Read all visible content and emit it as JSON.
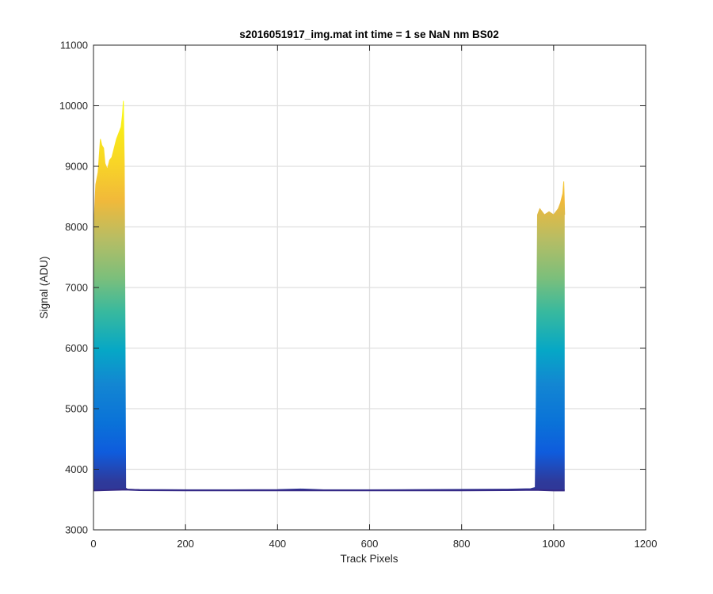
{
  "chart_data": {
    "type": "line",
    "title": "s2016051917_img.mat int time = 1 se  NaN nm BS02",
    "xlabel": "Track Pixels",
    "ylabel": "Signal (ADU)",
    "xlim": [
      0,
      1200
    ],
    "ylim": [
      3000,
      11000
    ],
    "x_ticks": [
      "0",
      "200",
      "400",
      "600",
      "800",
      "1000",
      "1200"
    ],
    "y_ticks": [
      "3000",
      "4000",
      "5000",
      "6000",
      "7000",
      "8000",
      "9000",
      "10000",
      "11000"
    ],
    "grid": true,
    "colormap": "parula",
    "series": [
      {
        "x": [
          0,
          2,
          5,
          10,
          15,
          18,
          22,
          25,
          30,
          35,
          40,
          45,
          50,
          55,
          60,
          63,
          65,
          67,
          70,
          72,
          75,
          100,
          200,
          300,
          400,
          450,
          500,
          600,
          700,
          800,
          900,
          950,
          960,
          962,
          965,
          970,
          980,
          990,
          1000,
          1010,
          1015,
          1020,
          1022,
          1024
        ],
        "y": [
          4600,
          8200,
          8700,
          8900,
          9450,
          9350,
          9300,
          9050,
          8950,
          9100,
          9150,
          9300,
          9450,
          9550,
          9650,
          9850,
          10080,
          9000,
          3690,
          3680,
          3670,
          3665,
          3662,
          3662,
          3665,
          3675,
          3662,
          3662,
          3665,
          3668,
          3672,
          3680,
          3700,
          5000,
          8200,
          8300,
          8200,
          8250,
          8200,
          8300,
          8400,
          8550,
          8750,
          8200
        ]
      },
      {
        "x": [
          0,
          70,
          100,
          200,
          300,
          400,
          500,
          600,
          700,
          800,
          900,
          960,
          1000,
          1024
        ],
        "y": [
          3650,
          3665,
          3655,
          3652,
          3652,
          3652,
          3652,
          3652,
          3652,
          3652,
          3655,
          3660,
          3650,
          3650
        ]
      }
    ]
  }
}
